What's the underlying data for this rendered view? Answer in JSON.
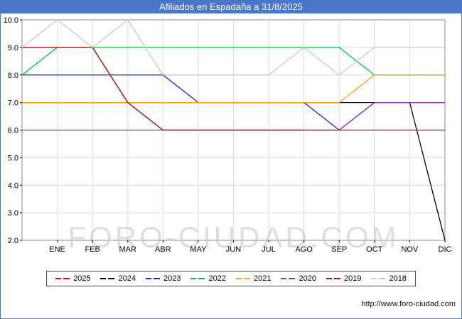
{
  "page": {
    "title": "Afiliados en Espadaña a 31/8/2025",
    "watermark": "FORO-CIUDAD.COM",
    "footer_url": "http://www.foro-ciudad.com",
    "title_bar_color": "#4a76c8",
    "border_color": "#4a76c8"
  },
  "chart_data": {
    "type": "line",
    "title": "Afiliados en Espadaña a 31/8/2025",
    "categories": [
      "ENE",
      "FEB",
      "MAR",
      "ABR",
      "MAY",
      "JUN",
      "JUL",
      "AGO",
      "SEP",
      "OCT",
      "NOV",
      "DIC"
    ],
    "ylim": [
      2,
      10
    ],
    "y_ticks": [
      2,
      3,
      4,
      5,
      6,
      7,
      8,
      9,
      10
    ],
    "grid": true,
    "legend_position": "bottom",
    "axis_start_note": "Each line starts at the left axis edge (start_value) before the ENE tick.",
    "series": [
      {
        "name": "2025",
        "color": "#d40000",
        "start_value": 9,
        "values": [
          9,
          9,
          7,
          6,
          6,
          6,
          6,
          6,
          null,
          null,
          null,
          null
        ]
      },
      {
        "name": "2024",
        "color": "#000000",
        "start_value": 7,
        "values": [
          7,
          7,
          7,
          7,
          7,
          7,
          7,
          7,
          7,
          7,
          7,
          2
        ]
      },
      {
        "name": "2023",
        "color": "#2020cc",
        "start_value": 8,
        "values": [
          8,
          8,
          8,
          8,
          7,
          7,
          7,
          7,
          6,
          7,
          7,
          7
        ]
      },
      {
        "name": "2022",
        "color": "#00c040",
        "start_value": 8,
        "values": [
          9,
          9,
          9,
          9,
          9,
          9,
          9,
          9,
          9,
          8,
          8,
          8
        ]
      },
      {
        "name": "2021",
        "color": "#ffa000",
        "start_value": 7,
        "values": [
          7,
          7,
          7,
          7,
          7,
          7,
          7,
          7,
          7,
          8,
          8,
          8
        ]
      },
      {
        "name": "2020",
        "color": "#9030c0",
        "start_value": 6,
        "values": [
          6,
          6,
          6,
          6,
          6,
          6,
          6,
          6,
          6,
          7,
          7,
          7
        ]
      },
      {
        "name": "2019",
        "color": "#aa1111",
        "start_value": 9,
        "values": [
          9,
          9,
          7,
          6,
          6,
          6,
          6,
          6,
          6,
          6,
          6,
          6
        ]
      },
      {
        "name": "2018",
        "color": "#c8c8c8",
        "start_value": 9,
        "values": [
          10,
          9,
          10,
          8,
          8,
          8,
          8,
          9,
          8,
          9,
          9,
          9
        ]
      }
    ]
  }
}
